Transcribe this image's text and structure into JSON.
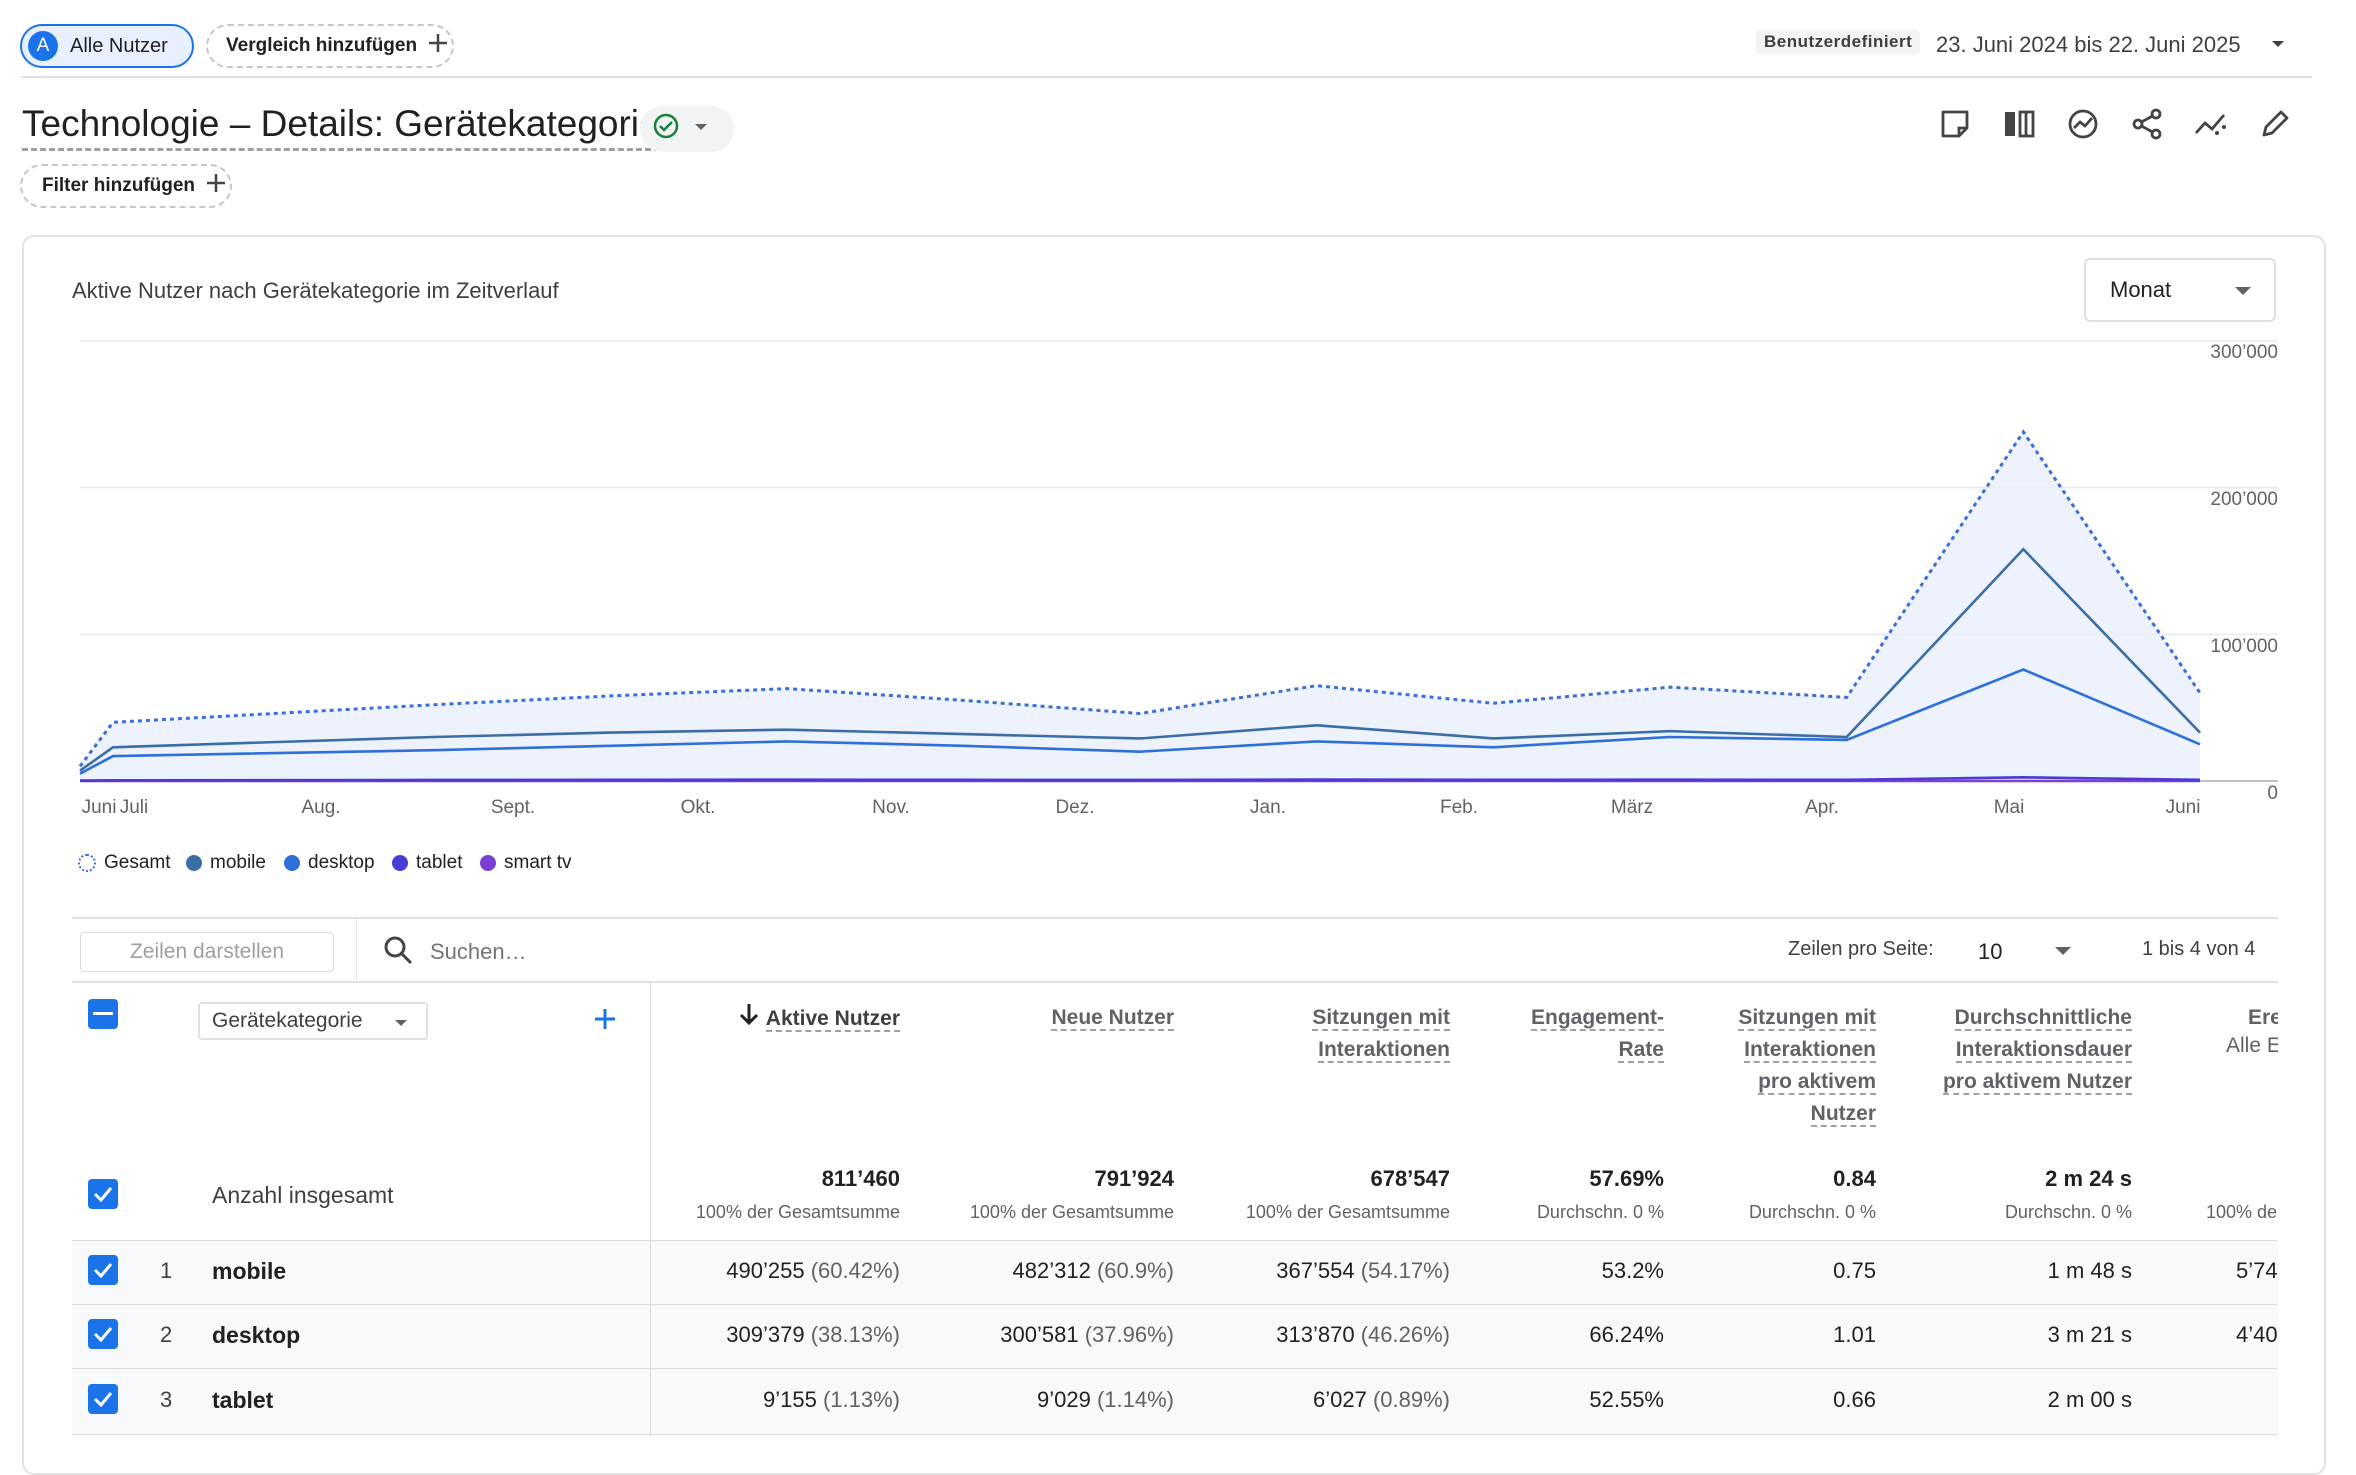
{
  "header": {
    "segment_avatar": "A",
    "segment_label": "Alle Nutzer",
    "compare_label": "Vergleich hinzufügen",
    "date_mode": "Benutzerdefiniert",
    "date_range": "23. Juni 2024 bis 22. Juni 2025"
  },
  "report": {
    "title": "Technologie – Details: Gerätekategorie",
    "filter_label": "Filter hinzufügen",
    "toolbar_icons": [
      "note-icon",
      "compare-columns-icon",
      "insights-icon",
      "share-icon",
      "trend-icon",
      "edit-icon"
    ]
  },
  "chart_card": {
    "title": "Aktive Nutzer nach Gerätekategorie im Zeitverlauf",
    "granularity": "Monat"
  },
  "chart_data": {
    "type": "line",
    "x": [
      "Juni",
      "Juli",
      "Aug.",
      "Sept.",
      "Okt.",
      "Nov.",
      "Dez.",
      "Jan.",
      "Feb.",
      "März",
      "Apr.",
      "Mai",
      "Juni"
    ],
    "ylim": [
      0,
      300000
    ],
    "yticks": [
      "0",
      "100’000",
      "200’000",
      "300’000"
    ],
    "grid": true,
    "legend_position": "bottom-left",
    "series": [
      {
        "name": "Gesamt",
        "style": "dotted",
        "color": "#3c6fd6",
        "values": [
          10000,
          40000,
          52000,
          58000,
          63000,
          55000,
          46000,
          65000,
          53000,
          64000,
          57000,
          238000,
          60000
        ]
      },
      {
        "name": "mobile",
        "color": "#3a6ea5",
        "values": [
          7000,
          23000,
          30000,
          33000,
          35000,
          32000,
          29000,
          38000,
          29000,
          34000,
          30000,
          158000,
          33000
        ]
      },
      {
        "name": "desktop",
        "color": "#2e6fd8",
        "values": [
          5000,
          17000,
          21000,
          24000,
          27000,
          24000,
          20000,
          27000,
          23000,
          30000,
          28000,
          76000,
          25000
        ]
      },
      {
        "name": "tablet",
        "color": "#4a3bd6",
        "values": [
          300,
          500,
          700,
          800,
          900,
          800,
          700,
          1000,
          800,
          900,
          800,
          2500,
          800
        ]
      },
      {
        "name": "smart tv",
        "color": "#7b3fd1",
        "values": [
          0,
          0,
          0,
          0,
          0,
          0,
          0,
          0,
          0,
          0,
          0,
          0,
          0
        ]
      }
    ]
  },
  "table_controls": {
    "rows_btn": "Zeilen darstellen",
    "search_placeholder": "Suchen…",
    "rows_per_page_label": "Zeilen pro Seite:",
    "rows_per_page": "10",
    "pagination": "1 bis 4 von 4"
  },
  "table": {
    "dimension": "Gerätekategorie",
    "columns": [
      {
        "label": "Aktive Nutzer",
        "sorted": true
      },
      {
        "label": "Neue Nutzer"
      },
      {
        "label": "Sitzungen mit Interaktionen"
      },
      {
        "label": "Engagement-Rate"
      },
      {
        "label": "Sitzungen mit Interaktionen pro aktivem Nutzer"
      },
      {
        "label": "Durchschnittliche Interaktionsdauer pro aktivem Nutzer"
      },
      {
        "label": "Ere",
        "sub": "Alle E"
      }
    ],
    "totals": {
      "label": "Anzahl insgesamt",
      "values": [
        "811’460",
        "791’924",
        "678’547",
        "57.69%",
        "0.84",
        "2 m 24 s"
      ],
      "subs": [
        "100% der Gesamtsumme",
        "100% der Gesamtsumme",
        "100% der Gesamtsumme",
        "Durchschn. 0 %",
        "Durchschn. 0 %",
        "Durchschn. 0 %",
        "100% de"
      ]
    },
    "rows": [
      {
        "idx": "1",
        "name": "mobile",
        "c1": "490’255",
        "c1p": "(60.42%)",
        "c2": "482’312",
        "c2p": "(60.9%)",
        "c3": "367’554",
        "c3p": "(54.17%)",
        "c4": "53.2%",
        "c5": "0.75",
        "c6": "1 m 48 s",
        "c7": "5’74"
      },
      {
        "idx": "2",
        "name": "desktop",
        "c1": "309’379",
        "c1p": "(38.13%)",
        "c2": "300’581",
        "c2p": "(37.96%)",
        "c3": "313’870",
        "c3p": "(46.26%)",
        "c4": "66.24%",
        "c5": "1.01",
        "c6": "3 m 21 s",
        "c7": "4’40"
      },
      {
        "idx": "3",
        "name": "tablet",
        "c1": "9’155",
        "c1p": "(1.13%)",
        "c2": "9’029",
        "c2p": "(1.14%)",
        "c3": "6’027",
        "c3p": "(0.89%)",
        "c4": "52.55%",
        "c5": "0.66",
        "c6": "2 m 00 s",
        "c7": ""
      }
    ]
  }
}
